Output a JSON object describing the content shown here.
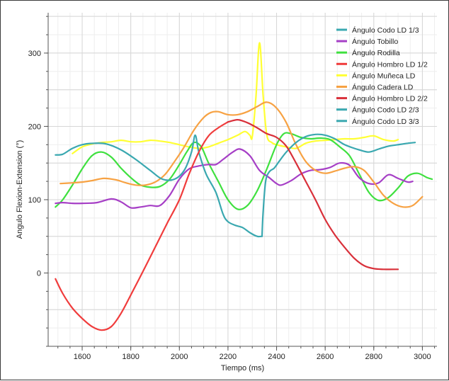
{
  "chart_data": {
    "type": "line",
    "title": "",
    "xlabel": "Tiempo (ms)",
    "ylabel": "Angulo Flexion-Extension (°)",
    "xlim": [
      1460,
      3060
    ],
    "ylim": [
      -100,
      355
    ],
    "x_ticks": [
      1600,
      1800,
      2000,
      2200,
      2400,
      2600,
      2800,
      3000
    ],
    "y_ticks": [
      0,
      100,
      200,
      300
    ],
    "grid": true,
    "legend_position": "top-right",
    "series": [
      {
        "name": "Ángulo Codo LD 1/3",
        "color": "#3aa8b0",
        "points": [
          [
            1490,
            161
          ],
          [
            1520,
            162
          ],
          [
            1560,
            170
          ],
          [
            1600,
            175
          ],
          [
            1650,
            177
          ],
          [
            1700,
            176
          ],
          [
            1760,
            168
          ],
          [
            1820,
            155
          ],
          [
            1880,
            140
          ],
          [
            1930,
            128
          ],
          [
            1980,
            128
          ],
          [
            2020,
            140
          ],
          [
            2050,
            165
          ],
          [
            2065,
            188
          ],
          [
            2080,
            165
          ],
          [
            2110,
            135
          ],
          [
            2150,
            110
          ],
          [
            2180,
            80
          ],
          [
            2200,
            70
          ],
          [
            2230,
            65
          ],
          [
            2260,
            62
          ],
          [
            2290,
            55
          ],
          [
            2320,
            50
          ],
          [
            2340,
            50
          ]
        ]
      },
      {
        "name": "Ángulo Tobillo",
        "color": "#a63fc6",
        "points": [
          [
            1490,
            95
          ],
          [
            1520,
            96
          ],
          [
            1560,
            95
          ],
          [
            1600,
            95
          ],
          [
            1660,
            96
          ],
          [
            1720,
            101
          ],
          [
            1760,
            97
          ],
          [
            1800,
            89
          ],
          [
            1840,
            90
          ],
          [
            1880,
            92
          ],
          [
            1920,
            92
          ],
          [
            1960,
            106
          ],
          [
            2000,
            128
          ],
          [
            2040,
            142
          ],
          [
            2080,
            146
          ],
          [
            2120,
            148
          ],
          [
            2150,
            148
          ],
          [
            2180,
            155
          ],
          [
            2220,
            165
          ],
          [
            2250,
            169
          ],
          [
            2290,
            160
          ],
          [
            2330,
            140
          ],
          [
            2370,
            130
          ],
          [
            2400,
            122
          ],
          [
            2420,
            120
          ],
          [
            2460,
            126
          ],
          [
            2500,
            135
          ],
          [
            2540,
            140
          ],
          [
            2580,
            141
          ],
          [
            2620,
            144
          ],
          [
            2660,
            150
          ],
          [
            2700,
            147
          ],
          [
            2740,
            130
          ],
          [
            2780,
            122
          ],
          [
            2820,
            123
          ],
          [
            2860,
            134
          ],
          [
            2900,
            129
          ],
          [
            2940,
            124
          ],
          [
            2960,
            125
          ]
        ]
      },
      {
        "name": "Ángulo Rodilla",
        "color": "#3fe03f",
        "points": [
          [
            1490,
            90
          ],
          [
            1520,
            100
          ],
          [
            1560,
            120
          ],
          [
            1600,
            142
          ],
          [
            1640,
            160
          ],
          [
            1680,
            165
          ],
          [
            1720,
            158
          ],
          [
            1760,
            143
          ],
          [
            1800,
            130
          ],
          [
            1840,
            120
          ],
          [
            1880,
            117
          ],
          [
            1920,
            118
          ],
          [
            1960,
            128
          ],
          [
            2000,
            148
          ],
          [
            2030,
            165
          ],
          [
            2060,
            178
          ],
          [
            2090,
            172
          ],
          [
            2120,
            150
          ],
          [
            2160,
            125
          ],
          [
            2200,
            100
          ],
          [
            2240,
            87
          ],
          [
            2280,
            92
          ],
          [
            2320,
            112
          ],
          [
            2360,
            142
          ],
          [
            2400,
            175
          ],
          [
            2430,
            190
          ],
          [
            2460,
            190
          ],
          [
            2500,
            185
          ],
          [
            2540,
            183
          ],
          [
            2580,
            184
          ],
          [
            2620,
            182
          ],
          [
            2660,
            172
          ],
          [
            2700,
            160
          ],
          [
            2740,
            135
          ],
          [
            2780,
            110
          ],
          [
            2820,
            99
          ],
          [
            2860,
            103
          ],
          [
            2900,
            116
          ],
          [
            2940,
            132
          ],
          [
            2980,
            136
          ],
          [
            3020,
            130
          ],
          [
            3040,
            128
          ]
        ]
      },
      {
        "name": "Ángulo Hombro LD 1/2",
        "color": "#f03c3c",
        "points": [
          [
            1490,
            -8
          ],
          [
            1520,
            -28
          ],
          [
            1560,
            -48
          ],
          [
            1600,
            -62
          ],
          [
            1640,
            -73
          ],
          [
            1680,
            -78
          ],
          [
            1720,
            -73
          ],
          [
            1760,
            -55
          ],
          [
            1800,
            -30
          ],
          [
            1850,
            2
          ],
          [
            1900,
            35
          ],
          [
            1950,
            68
          ],
          [
            2000,
            100
          ],
          [
            2040,
            135
          ],
          [
            2080,
            165
          ],
          [
            2120,
            187
          ],
          [
            2160,
            198
          ],
          [
            2200,
            206
          ]
        ]
      },
      {
        "name": "Ángulo Muñeca LD",
        "color": "#ffff33",
        "points": [
          [
            1560,
            163
          ],
          [
            1600,
            172
          ],
          [
            1640,
            176
          ],
          [
            1680,
            178
          ],
          [
            1720,
            179
          ],
          [
            1760,
            181
          ],
          [
            1800,
            179
          ],
          [
            1840,
            179
          ],
          [
            1880,
            181
          ],
          [
            1920,
            180
          ],
          [
            1960,
            178
          ],
          [
            2000,
            175
          ],
          [
            2040,
            172
          ],
          [
            2080,
            170
          ],
          [
            2120,
            172
          ],
          [
            2160,
            177
          ],
          [
            2200,
            182
          ],
          [
            2240,
            188
          ],
          [
            2270,
            193
          ],
          [
            2290,
            188
          ],
          [
            2300,
            186
          ],
          [
            2315,
            240
          ],
          [
            2330,
            314
          ],
          [
            2345,
            240
          ],
          [
            2360,
            188
          ],
          [
            2380,
            178
          ],
          [
            2400,
            175
          ],
          [
            2440,
            172
          ],
          [
            2480,
            170
          ],
          [
            2520,
            177
          ],
          [
            2560,
            180
          ],
          [
            2600,
            181
          ],
          [
            2640,
            182
          ],
          [
            2680,
            183
          ],
          [
            2720,
            183
          ],
          [
            2760,
            185
          ],
          [
            2800,
            187
          ],
          [
            2840,
            182
          ],
          [
            2880,
            180
          ],
          [
            2900,
            182
          ]
        ]
      },
      {
        "name": "Ángulo Cadera LD",
        "color": "#f7a243",
        "points": [
          [
            1510,
            122
          ],
          [
            1560,
            123
          ],
          [
            1600,
            124
          ],
          [
            1640,
            126
          ],
          [
            1690,
            129
          ],
          [
            1740,
            127
          ],
          [
            1780,
            123
          ],
          [
            1820,
            120
          ],
          [
            1860,
            120
          ],
          [
            1900,
            124
          ],
          [
            1940,
            134
          ],
          [
            1980,
            152
          ],
          [
            2020,
            172
          ],
          [
            2060,
            195
          ],
          [
            2100,
            212
          ],
          [
            2130,
            219
          ],
          [
            2160,
            220
          ],
          [
            2200,
            216
          ],
          [
            2240,
            216
          ],
          [
            2280,
            220
          ],
          [
            2320,
            227
          ],
          [
            2360,
            233
          ],
          [
            2400,
            225
          ],
          [
            2440,
            205
          ],
          [
            2480,
            175
          ],
          [
            2520,
            152
          ],
          [
            2560,
            140
          ],
          [
            2600,
            136
          ],
          [
            2640,
            139
          ],
          [
            2680,
            143
          ],
          [
            2720,
            145
          ],
          [
            2760,
            140
          ],
          [
            2800,
            124
          ],
          [
            2840,
            106
          ],
          [
            2880,
            95
          ],
          [
            2920,
            90
          ],
          [
            2960,
            92
          ],
          [
            3000,
            104
          ]
        ]
      },
      {
        "name": "Ángulo Hombro LD 2/2",
        "color": "#d9303a",
        "points": [
          [
            2200,
            206
          ],
          [
            2240,
            209
          ],
          [
            2280,
            205
          ],
          [
            2320,
            198
          ],
          [
            2360,
            190
          ],
          [
            2400,
            185
          ],
          [
            2440,
            173
          ],
          [
            2480,
            150
          ],
          [
            2520,
            125
          ],
          [
            2560,
            100
          ],
          [
            2600,
            73
          ],
          [
            2640,
            52
          ],
          [
            2680,
            35
          ],
          [
            2720,
            20
          ],
          [
            2760,
            10
          ],
          [
            2800,
            6
          ],
          [
            2840,
            5
          ],
          [
            2900,
            5
          ]
        ]
      },
      {
        "name": "Ángulo Codo LD 2/3",
        "color": "#3aa8b0",
        "points": [
          [
            2340,
            50
          ],
          [
            2345,
            85
          ],
          [
            2355,
            125
          ],
          [
            2370,
            138
          ],
          [
            2390,
            143
          ],
          [
            2410,
            152
          ],
          [
            2440,
            165
          ],
          [
            2480,
            178
          ],
          [
            2520,
            186
          ],
          [
            2560,
            189
          ],
          [
            2600,
            188
          ],
          [
            2640,
            183
          ],
          [
            2680,
            175
          ],
          [
            2720,
            170
          ],
          [
            2740,
            168
          ]
        ]
      },
      {
        "name": "Ángulo Codo LD 3/3",
        "color": "#3aa8b0",
        "points": [
          [
            2740,
            168
          ],
          [
            2780,
            165
          ],
          [
            2820,
            169
          ],
          [
            2860,
            173
          ],
          [
            2900,
            175
          ],
          [
            2940,
            177
          ],
          [
            2970,
            178
          ]
        ]
      }
    ]
  }
}
